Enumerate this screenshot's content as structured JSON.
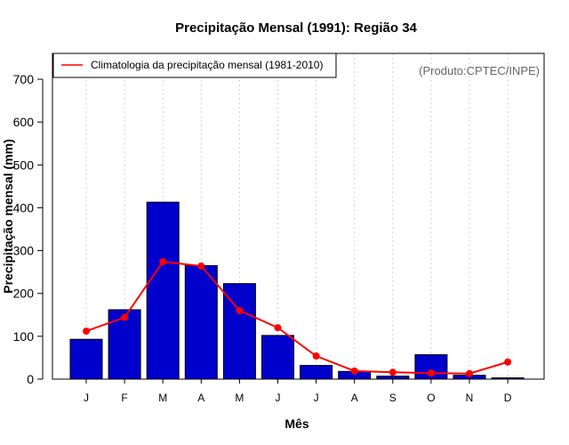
{
  "chart_data": {
    "type": "bar",
    "title": "Precipitação Mensal (1991): Região 34",
    "xlabel": "Mês",
    "ylabel": "Precipitação mensal (mm)",
    "ylim": [
      0,
      760
    ],
    "yticks": [
      0,
      100,
      200,
      300,
      400,
      500,
      600,
      700
    ],
    "categories": [
      "J",
      "F",
      "M",
      "A",
      "M",
      "J",
      "J",
      "A",
      "S",
      "O",
      "N",
      "D"
    ],
    "series": [
      {
        "name": "Precipitação mensal (1991)",
        "type": "bar",
        "color": "#0000CC",
        "values": [
          93,
          162,
          413,
          265,
          223,
          102,
          32,
          18,
          7,
          57,
          9,
          3
        ]
      },
      {
        "name": "Climatologia da precipitação mensal (1981-2010)",
        "type": "line",
        "color": "#FF0000",
        "values": [
          112,
          144,
          274,
          264,
          160,
          120,
          54,
          19,
          16,
          14,
          13,
          40
        ]
      }
    ],
    "legend": {
      "position": "top-left",
      "label": "Climatologia da precipitação mensal (1981-2010)"
    },
    "credit": "(Produto:CPTEC/INPE)",
    "grid": "vertical-dotted"
  }
}
